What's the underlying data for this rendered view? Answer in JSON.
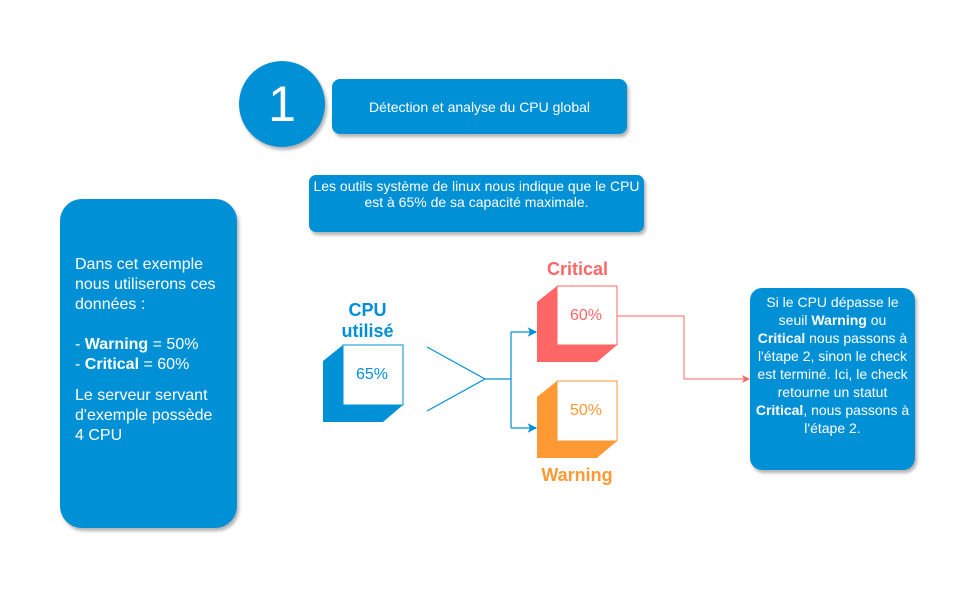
{
  "step": {
    "number": "1",
    "title": "Détection et analyse du CPU global"
  },
  "description": "Les outils système de linux nous indique que le CPU est à 65% de sa capacité maximale.",
  "left_note": {
    "intro": "Dans cet exemple nous utiliserons ces données :",
    "warning_label": "Warning",
    "warning_value": " = 50%",
    "critical_label": "Critical",
    "critical_value": " = 60%",
    "server": "Le serveur servant d'exemple possède 4 CPU"
  },
  "cpu": {
    "label": "CPU utilisé",
    "value": "65%",
    "color": "#0090d6"
  },
  "critical": {
    "label": "Critical",
    "value": "60%",
    "color": "#ff6666"
  },
  "warning": {
    "label": "Warning",
    "value": "50%",
    "color": "#ff9933"
  },
  "right_note": {
    "t1": "Si le CPU dépasse le seuil ",
    "b1": "Warning",
    "t2": " ou ",
    "b2": "Critical",
    "t3": " nous passons à l'étape 2, sinon le check est terminé. Ici, le check retourne un statut ",
    "b3": "Critical",
    "t4": ", nous passons à l'étape 2."
  }
}
